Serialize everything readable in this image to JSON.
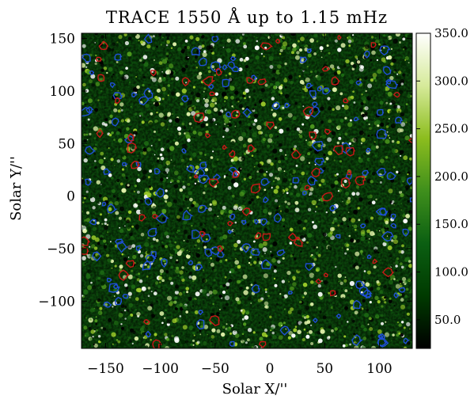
{
  "chart_data": {
    "type": "heatmap",
    "title": "TRACE 1550 Å up to 1.15 mHz",
    "xlabel": "Solar X/''",
    "ylabel": "Solar Y/''",
    "xlim": [
      -172,
      130
    ],
    "ylim": [
      -145,
      155
    ],
    "x_ticks": [
      -150,
      -100,
      -50,
      0,
      50,
      100
    ],
    "x_tick_labels": [
      "−150",
      "−100",
      "−50",
      "0",
      "50",
      "100"
    ],
    "y_ticks": [
      -100,
      -50,
      0,
      50,
      100,
      150
    ],
    "y_tick_labels": [
      "−100",
      "−50",
      "0",
      "50",
      "100",
      "150"
    ],
    "colorbar": {
      "range": [
        20,
        350
      ],
      "ticks": [
        50,
        100,
        150,
        200,
        250,
        300,
        350
      ],
      "tick_labels": [
        "50.0",
        "100.0",
        "150.0",
        "200.0",
        "250.0",
        "300.0",
        "350.0"
      ],
      "colors": [
        "#000000",
        "#003a00",
        "#0b5f12",
        "#3f8f1c",
        "#8cbd1e",
        "#d6ea9a",
        "#ffffff"
      ]
    },
    "contour_colors": {
      "blue": "#1f4fd6",
      "red": "#c81818"
    },
    "grid": false
  }
}
